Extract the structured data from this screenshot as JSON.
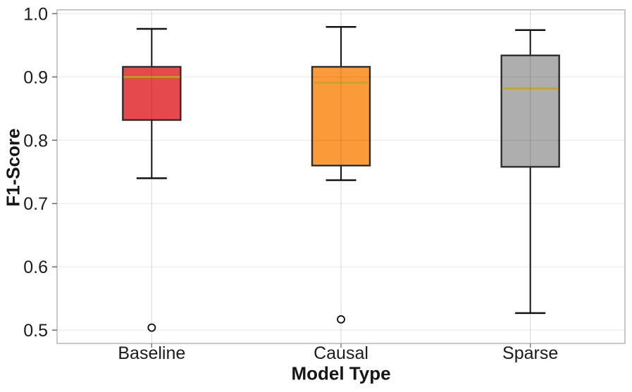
{
  "chart_data": {
    "type": "boxplot",
    "title": "",
    "xlabel": "Model Type",
    "ylabel": "F1-Score",
    "categories": [
      "Baseline",
      "Causal",
      "Sparse"
    ],
    "ylim": [
      0.479,
      1.006
    ],
    "grid": true,
    "legend": "none",
    "y_ticks": [
      {
        "v": 1.0,
        "label": "1.0"
      },
      {
        "v": 0.9,
        "label": "0.9"
      },
      {
        "v": 0.8,
        "label": "0.8"
      },
      {
        "v": 0.7,
        "label": "0.7"
      },
      {
        "v": 0.6,
        "label": "0.6"
      },
      {
        "v": 0.5,
        "label": "0.5"
      }
    ],
    "series": [
      {
        "name": "Baseline",
        "box_color": "#e5494d",
        "whisker_low": 0.74,
        "q1": 0.832,
        "median": 0.9,
        "q3": 0.916,
        "whisker_high": 0.976,
        "outliers": [
          0.504
        ]
      },
      {
        "name": "Causal",
        "box_color": "#fb9a38",
        "whisker_low": 0.737,
        "q1": 0.76,
        "median": 0.891,
        "q3": 0.916,
        "whisker_high": 0.979,
        "outliers": [
          0.517
        ]
      },
      {
        "name": "Sparse",
        "box_color": "#aeaeae",
        "whisker_low": 0.527,
        "q1": 0.758,
        "median": 0.882,
        "q3": 0.934,
        "whisker_high": 0.974,
        "outliers": []
      }
    ],
    "style": {
      "median_color": "#c9a227",
      "box_edge_color": "#2e2e2e",
      "whisker_color": "#141414",
      "outlier_edge_color": "#141414",
      "outlier_fill": "#ffffff",
      "frame_color": "#c8c8c8",
      "grid_h_color": "rgba(0,0,0,0.065)",
      "grid_v_color": "rgba(0,0,0,0.12)",
      "tick_color": "#6b6b6b",
      "text_color": "#1b1b1b"
    }
  }
}
